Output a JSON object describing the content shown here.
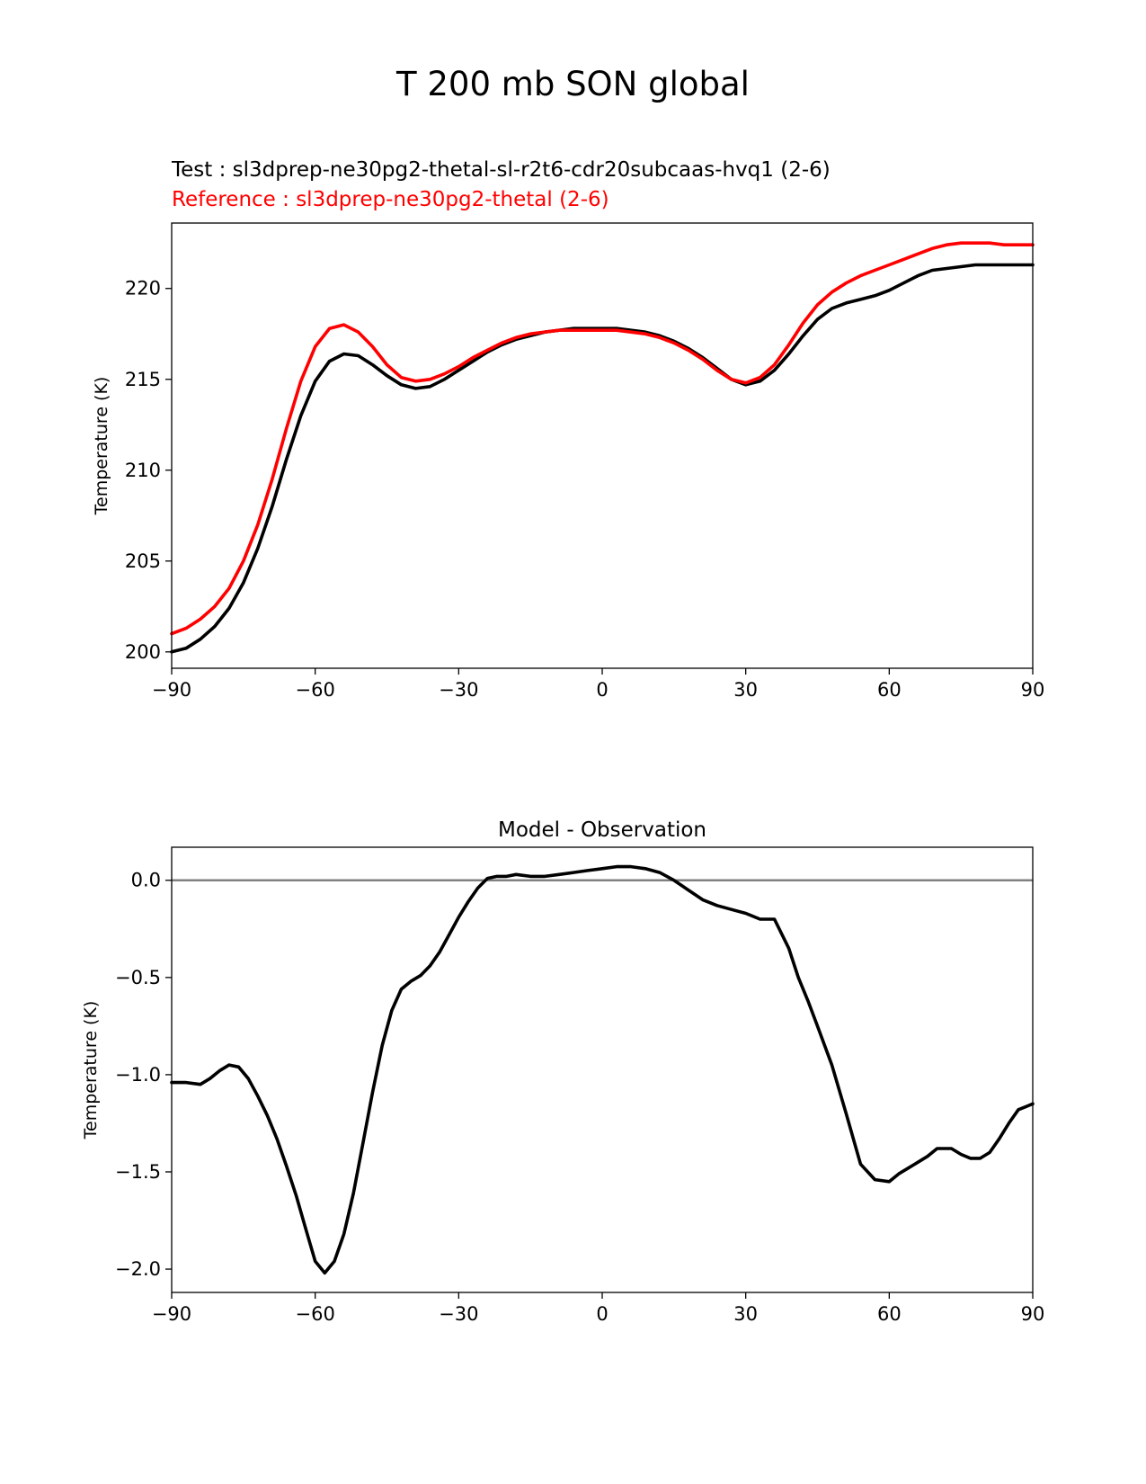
{
  "figure": {
    "suptitle": "T 200 mb SON global",
    "legend": {
      "test": "Test : sl3dprep-ne30pg2-thetal-sl-r2t6-cdr20subcaas-hvq1 (2-6)",
      "reference": "Reference : sl3dprep-ne30pg2-thetal (2-6)"
    }
  },
  "colors": {
    "test": "#000000",
    "reference": "#ff0000",
    "zero_line": "#808080"
  },
  "chart_data": [
    {
      "type": "line",
      "title": "",
      "xlabel": "",
      "ylabel": "Temperature (K)",
      "xlim": [
        -90,
        90
      ],
      "ylim": [
        199.1,
        223.6
      ],
      "xticks": [
        -90,
        -60,
        -30,
        0,
        30,
        60,
        90
      ],
      "xtick_labels": [
        "−90",
        "−60",
        "−30",
        "0",
        "30",
        "60",
        "90"
      ],
      "yticks": [
        200,
        205,
        210,
        215,
        220
      ],
      "ytick_labels": [
        "200",
        "205",
        "210",
        "215",
        "220"
      ],
      "grid": false,
      "series": [
        {
          "name": "Test : sl3dprep-ne30pg2-thetal-sl-r2t6-cdr20subcaas-hvq1 (2-6)",
          "color": "#000000",
          "x": [
            -90,
            -87,
            -84,
            -81,
            -78,
            -75,
            -72,
            -69,
            -66,
            -63,
            -60,
            -57,
            -54,
            -51,
            -48,
            -45,
            -42,
            -39,
            -36,
            -33,
            -30,
            -27,
            -24,
            -21,
            -18,
            -15,
            -12,
            -9,
            -6,
            -3,
            0,
            3,
            6,
            9,
            12,
            15,
            18,
            21,
            24,
            27,
            30,
            33,
            36,
            39,
            42,
            45,
            48,
            51,
            54,
            57,
            60,
            63,
            66,
            69,
            72,
            75,
            78,
            81,
            84,
            87,
            90
          ],
          "y": [
            200.0,
            200.2,
            200.7,
            201.4,
            202.4,
            203.8,
            205.7,
            208.0,
            210.6,
            213.0,
            214.9,
            216.0,
            216.4,
            216.3,
            215.8,
            215.2,
            214.7,
            214.5,
            214.6,
            215.0,
            215.5,
            216.0,
            216.5,
            216.9,
            217.2,
            217.4,
            217.6,
            217.7,
            217.8,
            217.8,
            217.8,
            217.8,
            217.7,
            217.6,
            217.4,
            217.1,
            216.7,
            216.2,
            215.6,
            215.0,
            214.7,
            214.9,
            215.5,
            216.4,
            217.4,
            218.3,
            218.9,
            219.2,
            219.4,
            219.6,
            219.9,
            220.3,
            220.7,
            221.0,
            221.1,
            221.2,
            221.3,
            221.3,
            221.3,
            221.3,
            221.3
          ]
        },
        {
          "name": "Reference : sl3dprep-ne30pg2-thetal (2-6)",
          "color": "#ff0000",
          "x": [
            -90,
            -87,
            -84,
            -81,
            -78,
            -75,
            -72,
            -69,
            -66,
            -63,
            -60,
            -57,
            -54,
            -51,
            -48,
            -45,
            -42,
            -39,
            -36,
            -33,
            -30,
            -27,
            -24,
            -21,
            -18,
            -15,
            -12,
            -9,
            -6,
            -3,
            0,
            3,
            6,
            9,
            12,
            15,
            18,
            21,
            24,
            27,
            30,
            33,
            36,
            39,
            42,
            45,
            48,
            51,
            54,
            57,
            60,
            63,
            66,
            69,
            72,
            75,
            78,
            81,
            84,
            87,
            90
          ],
          "y": [
            201.0,
            201.3,
            201.8,
            202.5,
            203.5,
            205.0,
            207.0,
            209.5,
            212.3,
            214.9,
            216.8,
            217.8,
            218.0,
            217.6,
            216.8,
            215.8,
            215.1,
            214.9,
            215.0,
            215.3,
            215.7,
            216.2,
            216.6,
            217.0,
            217.3,
            217.5,
            217.6,
            217.7,
            217.7,
            217.7,
            217.7,
            217.7,
            217.6,
            217.5,
            217.3,
            217.0,
            216.6,
            216.1,
            215.5,
            215.0,
            214.8,
            215.1,
            215.8,
            216.9,
            218.1,
            219.1,
            219.8,
            220.3,
            220.7,
            221.0,
            221.3,
            221.6,
            221.9,
            222.2,
            222.4,
            222.5,
            222.5,
            222.5,
            222.4,
            222.4,
            222.4
          ]
        }
      ]
    },
    {
      "type": "line",
      "title": "Model - Observation",
      "xlabel": "",
      "ylabel": "Temperature (K)",
      "xlim": [
        -90,
        90
      ],
      "ylim": [
        -2.12,
        0.17
      ],
      "xticks": [
        -90,
        -60,
        -30,
        0,
        30,
        60,
        90
      ],
      "xtick_labels": [
        "−90",
        "−60",
        "−30",
        "0",
        "30",
        "60",
        "90"
      ],
      "yticks": [
        0.0,
        -0.5,
        -1.0,
        -1.5,
        -2.0
      ],
      "ytick_labels": [
        "0.0",
        "−0.5",
        "−1.0",
        "−1.5",
        "−2.0"
      ],
      "grid": false,
      "reference_line": {
        "y": 0.0,
        "color": "#808080"
      },
      "series": [
        {
          "name": "Model - Observation",
          "color": "#000000",
          "x": [
            -90,
            -87,
            -84,
            -82,
            -80,
            -78,
            -76,
            -74,
            -72,
            -70,
            -68,
            -66,
            -64,
            -62,
            -60,
            -58,
            -56,
            -54,
            -52,
            -50,
            -48,
            -46,
            -44,
            -42,
            -40,
            -38,
            -36,
            -34,
            -32,
            -30,
            -28,
            -26,
            -24,
            -22,
            -20,
            -18,
            -15,
            -12,
            -9,
            -6,
            -3,
            0,
            3,
            6,
            9,
            12,
            15,
            18,
            21,
            24,
            27,
            30,
            33,
            36,
            39,
            41,
            43,
            45,
            48,
            51,
            54,
            57,
            60,
            62,
            64,
            66,
            68,
            70,
            73,
            75,
            77,
            79,
            81,
            83,
            85,
            87,
            89,
            90
          ],
          "y": [
            -1.04,
            -1.04,
            -1.05,
            -1.02,
            -0.98,
            -0.95,
            -0.96,
            -1.02,
            -1.11,
            -1.21,
            -1.33,
            -1.47,
            -1.62,
            -1.79,
            -1.96,
            -2.02,
            -1.96,
            -1.82,
            -1.61,
            -1.35,
            -1.09,
            -0.85,
            -0.67,
            -0.56,
            -0.52,
            -0.49,
            -0.44,
            -0.37,
            -0.28,
            -0.19,
            -0.11,
            -0.04,
            0.01,
            0.02,
            0.02,
            0.03,
            0.02,
            0.02,
            0.03,
            0.04,
            0.05,
            0.06,
            0.07,
            0.07,
            0.06,
            0.04,
            0.0,
            -0.05,
            -0.1,
            -0.13,
            -0.15,
            -0.17,
            -0.2,
            -0.2,
            -0.35,
            -0.5,
            -0.62,
            -0.75,
            -0.95,
            -1.2,
            -1.46,
            -1.54,
            -1.55,
            -1.51,
            -1.48,
            -1.45,
            -1.42,
            -1.38,
            -1.38,
            -1.41,
            -1.43,
            -1.43,
            -1.4,
            -1.33,
            -1.25,
            -1.18,
            -1.16,
            -1.15
          ]
        }
      ]
    }
  ]
}
